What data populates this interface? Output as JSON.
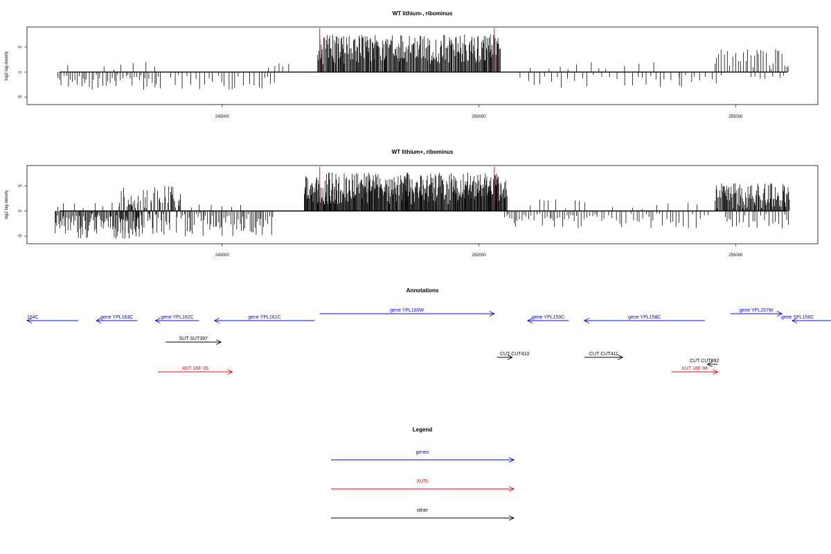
{
  "colors": {
    "gene": "#0000ff",
    "xut": "#ff0000",
    "other": "#000000",
    "marker": "#ff0000",
    "bar": "#000000"
  },
  "chart_data": [
    {
      "type": "bar",
      "title": "WT lithium-, ribominus",
      "ylabel": "log2 tag density",
      "xlim": [
        241200,
        256600
      ],
      "ylim": [
        -6.5,
        9
      ],
      "x_ticks": [
        "245000",
        "250000",
        "255000"
      ],
      "y_ticks": [
        "-5",
        "0",
        "5"
      ],
      "markers": [
        246900,
        250300
      ],
      "segments": [
        {
          "start": 241800,
          "end": 243800,
          "step": 45,
          "type": "neg",
          "max": 3.6,
          "seed": 11
        },
        {
          "start": 242700,
          "end": 243800,
          "step": 220,
          "type": "pos",
          "max": 2.8,
          "seed": 12
        },
        {
          "start": 241600,
          "end": 242200,
          "step": 320,
          "type": "pos",
          "max": 1.6,
          "seed": 16
        },
        {
          "start": 244000,
          "end": 246100,
          "step": 90,
          "type": "neg",
          "max": 3.5,
          "seed": 13
        },
        {
          "start": 245900,
          "end": 246400,
          "step": 120,
          "type": "pos",
          "max": 2.2,
          "seed": 14
        },
        {
          "start": 246860,
          "end": 250420,
          "step": 14,
          "type": "pos",
          "min": 1.5,
          "max": 7.5,
          "seed": 15
        },
        {
          "start": 250800,
          "end": 254000,
          "step": 130,
          "type": "neg",
          "max": 3.5,
          "seed": 17
        },
        {
          "start": 251000,
          "end": 253500,
          "step": 260,
          "type": "pos",
          "max": 2.0,
          "seed": 18
        },
        {
          "start": 253900,
          "end": 254800,
          "step": 90,
          "type": "neg",
          "max": 3.5,
          "seed": 19
        },
        {
          "start": 254600,
          "end": 256400,
          "step": 45,
          "type": "pos",
          "max": 4.6,
          "seed": 20
        },
        {
          "start": 255300,
          "end": 256400,
          "step": 110,
          "type": "neg",
          "max": 2.8,
          "seed": 21
        }
      ]
    },
    {
      "type": "bar",
      "title": "WT lithium+, ribominus",
      "ylabel": "log2 tag density",
      "xlim": [
        241200,
        256600
      ],
      "ylim": [
        -6.5,
        9
      ],
      "x_ticks": [
        "245000",
        "250000",
        "255000"
      ],
      "y_ticks": [
        "-5",
        "0",
        "5"
      ],
      "markers": [
        246900,
        250300
      ],
      "segments": [
        {
          "start": 241350,
          "end": 243400,
          "step": 18,
          "type": "neg",
          "max": 5.5,
          "seed": 31
        },
        {
          "start": 241800,
          "end": 243000,
          "step": 160,
          "type": "pos",
          "max": 1.8,
          "seed": 32
        },
        {
          "start": 243000,
          "end": 244200,
          "step": 14,
          "type": "mix",
          "max": 5.0,
          "seed": 33
        },
        {
          "start": 244200,
          "end": 246000,
          "step": 30,
          "type": "neg",
          "max": 5.0,
          "seed": 34
        },
        {
          "start": 244400,
          "end": 245400,
          "step": 160,
          "type": "pos",
          "max": 1.5,
          "seed": 35
        },
        {
          "start": 246600,
          "end": 250550,
          "step": 11,
          "type": "pos",
          "min": 1.2,
          "max": 7.6,
          "seed": 36
        },
        {
          "start": 250500,
          "end": 252300,
          "step": 40,
          "type": "neg",
          "max": 4.0,
          "seed": 37
        },
        {
          "start": 251000,
          "end": 252200,
          "step": 150,
          "type": "pos",
          "max": 2.6,
          "seed": 38
        },
        {
          "start": 252300,
          "end": 254500,
          "step": 70,
          "type": "neg",
          "max": 3.5,
          "seed": 39
        },
        {
          "start": 252600,
          "end": 254300,
          "step": 280,
          "type": "pos",
          "max": 1.6,
          "seed": 40
        },
        {
          "start": 254600,
          "end": 256400,
          "step": 14,
          "type": "pos",
          "max": 5.5,
          "seed": 41
        },
        {
          "start": 254800,
          "end": 256400,
          "step": 55,
          "type": "neg",
          "max": 3.5,
          "seed": 42
        }
      ]
    }
  ],
  "annotations": {
    "title": "Annotations",
    "items": [
      {
        "label": "164C",
        "dir": "left",
        "kind": "gene",
        "start": 241200,
        "end": 242200,
        "row": 0
      },
      {
        "label": "gene YPL163C",
        "dir": "left",
        "kind": "gene",
        "start": 242550,
        "end": 243350,
        "row": 0
      },
      {
        "label": "gene YPL162C",
        "dir": "left",
        "kind": "gene",
        "start": 243700,
        "end": 244550,
        "row": 0
      },
      {
        "label": "gene YPL161C",
        "dir": "left",
        "kind": "gene",
        "start": 244850,
        "end": 246800,
        "row": 0
      },
      {
        "label": "gene YPL160W",
        "dir": "right",
        "kind": "gene",
        "start": 246900,
        "end": 250300,
        "row": -1
      },
      {
        "label": "gene YPL159C",
        "dir": "left",
        "kind": "gene",
        "start": 250950,
        "end": 251750,
        "row": 0
      },
      {
        "label": "gene YPL158C",
        "dir": "left",
        "kind": "gene",
        "start": 252050,
        "end": 254400,
        "row": 0
      },
      {
        "label": "gene YPL157W",
        "dir": "right",
        "kind": "gene",
        "start": 254900,
        "end": 255900,
        "row": -1
      },
      {
        "label": "gene YPL156C",
        "dir": "left",
        "kind": "gene",
        "start": 256100,
        "end": 257000,
        "row": 0
      },
      {
        "label": "SUT SUT397",
        "dir": "right",
        "kind": "other",
        "start": 243900,
        "end": 244980,
        "row": 1
      },
      {
        "label": "XUT 16F-95",
        "dir": "right",
        "kind": "xut",
        "start": 243750,
        "end": 245200,
        "row": 3
      },
      {
        "label": "CUT CUT410",
        "dir": "right",
        "kind": "other",
        "start": 250350,
        "end": 250650,
        "row": 2
      },
      {
        "label": "CUT CUT411",
        "dir": "right",
        "kind": "other",
        "start": 252050,
        "end": 252800,
        "row": 2
      },
      {
        "label": "CUT CUT892",
        "dir": "left",
        "kind": "other",
        "start": 254450,
        "end": 254650,
        "row": 2.6
      },
      {
        "label": "XUT 16F-98",
        "dir": "right",
        "kind": "xut",
        "start": 253750,
        "end": 254650,
        "row": 3
      }
    ]
  },
  "legend": {
    "title": "Legend",
    "items": [
      {
        "label": "genes",
        "kind": "gene"
      },
      {
        "label": "XUTs",
        "kind": "xut"
      },
      {
        "label": "other",
        "kind": "other"
      }
    ]
  }
}
